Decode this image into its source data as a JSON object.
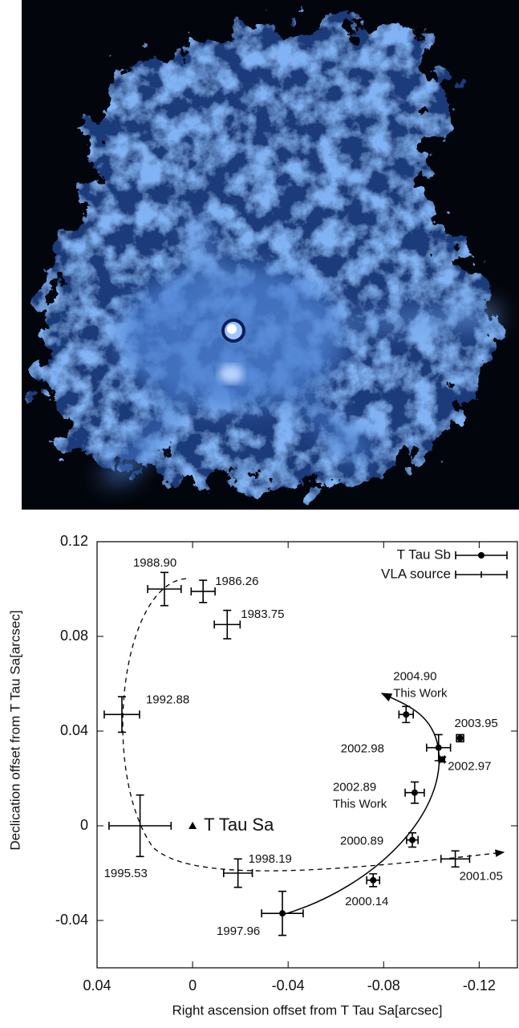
{
  "chart_data": {
    "type": "scatter",
    "xlabel": "Right ascension offset from T Tau Sa[arcsec]",
    "ylabel": "Declication offset from T Tau Sa[arcsec]",
    "xlim": [
      0.04,
      -0.136
    ],
    "ylim": [
      -0.06,
      0.12
    ],
    "xticks": [
      0.04,
      0,
      -0.04,
      -0.08,
      -0.12
    ],
    "yticks": [
      -0.04,
      0,
      0.04,
      0.08,
      0.12
    ],
    "legend": "upper right",
    "reference": {
      "name": "T Tau Sa",
      "x": 0,
      "y": 0
    },
    "series": [
      {
        "name": "T Tau Sb",
        "color": "#000000",
        "marker": "circle",
        "x": [
          -0.0376,
          -0.0756,
          -0.092,
          -0.093,
          -0.103,
          -0.1045,
          -0.112,
          -0.0894
        ],
        "y": [
          -0.037,
          -0.023,
          -0.006,
          0.014,
          0.033,
          0.028,
          0.037,
          0.047
        ],
        "xerr": [
          0.0087,
          0.0027,
          0.0024,
          0.004,
          0.005,
          0.001,
          0.0015,
          0.003
        ],
        "yerr": [
          0.0093,
          0.0027,
          0.003,
          0.0045,
          0.0055,
          0.001,
          0.0015,
          0.0034
        ],
        "labels": [
          "1997.96",
          "2000.14",
          "2000.89",
          "2002.89",
          "2002.98",
          "2002.97",
          "2003.95",
          "2004.90"
        ],
        "notes": [
          null,
          null,
          null,
          "This Work",
          null,
          null,
          null,
          "This Work"
        ]
      },
      {
        "name": "VLA source",
        "color": "#000000",
        "marker": "none",
        "x": [
          -0.0145,
          -0.0044,
          0.0118,
          0.0296,
          0.022,
          -0.019,
          -0.11
        ],
        "y": [
          0.085,
          0.099,
          0.1,
          0.047,
          0,
          -0.02,
          -0.014
        ],
        "xerr": [
          0.0054,
          0.005,
          0.007,
          0.0074,
          0.013,
          0.006,
          0.006
        ],
        "yerr": [
          0.006,
          0.0047,
          0.007,
          0.0075,
          0.013,
          0.006,
          0.0034
        ],
        "labels": [
          "1983.75",
          "1986.26",
          "1988.90",
          "1992.88",
          "1995.53",
          "1998.19",
          "2001.05"
        ]
      }
    ]
  }
}
